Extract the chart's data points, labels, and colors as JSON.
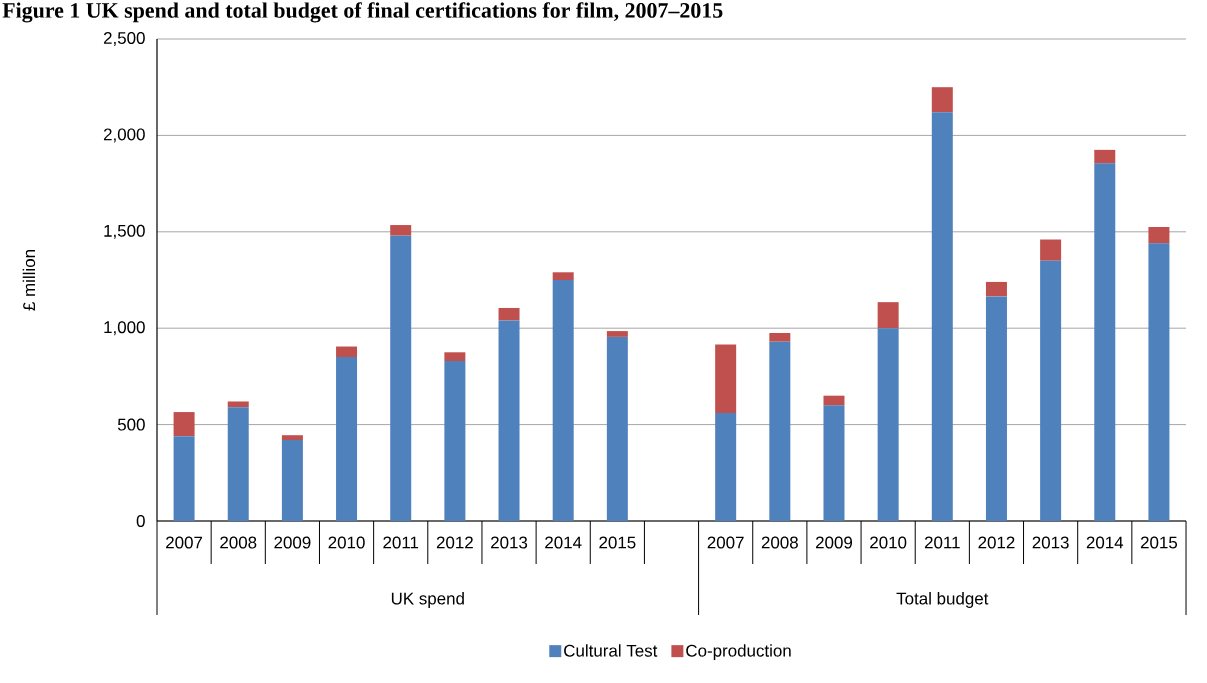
{
  "chart_data": {
    "type": "bar",
    "stacked": true,
    "title": "Figure 1 UK spend and total budget of final certifications for film, 2007–2015",
    "ylabel": "£ million",
    "categories": [
      "2007",
      "2008",
      "2009",
      "2010",
      "2011",
      "2012",
      "2013",
      "2014",
      "2015",
      null,
      "2007",
      "2008",
      "2009",
      "2010",
      "2011",
      "2012",
      "2013",
      "2014",
      "2015"
    ],
    "series": [
      {
        "name": "Cultural Test",
        "color": "#4f81bd",
        "values": [
          440,
          590,
          420,
          850,
          1480,
          830,
          1040,
          1250,
          955,
          null,
          560,
          930,
          600,
          1000,
          2120,
          1165,
          1350,
          1855,
          1440
        ]
      },
      {
        "name": "Co-production",
        "color": "#c0504d",
        "values": [
          125,
          30,
          25,
          55,
          55,
          45,
          65,
          40,
          30,
          null,
          355,
          45,
          50,
          135,
          130,
          75,
          110,
          70,
          85
        ]
      }
    ],
    "annotations": [
      "UK spend",
      "Total budget"
    ],
    "ylim": [
      0,
      2500
    ],
    "yticks": [
      0,
      {
        "value": 500,
        "label": "500"
      },
      {
        "value": 1000,
        "label": "1,000"
      },
      {
        "value": 1500,
        "label": "1,500"
      },
      {
        "value": 2000,
        "label": "2,000"
      },
      {
        "value": 2500,
        "label": "2,500"
      }
    ],
    "grid": "y",
    "legend": "bottom"
  }
}
